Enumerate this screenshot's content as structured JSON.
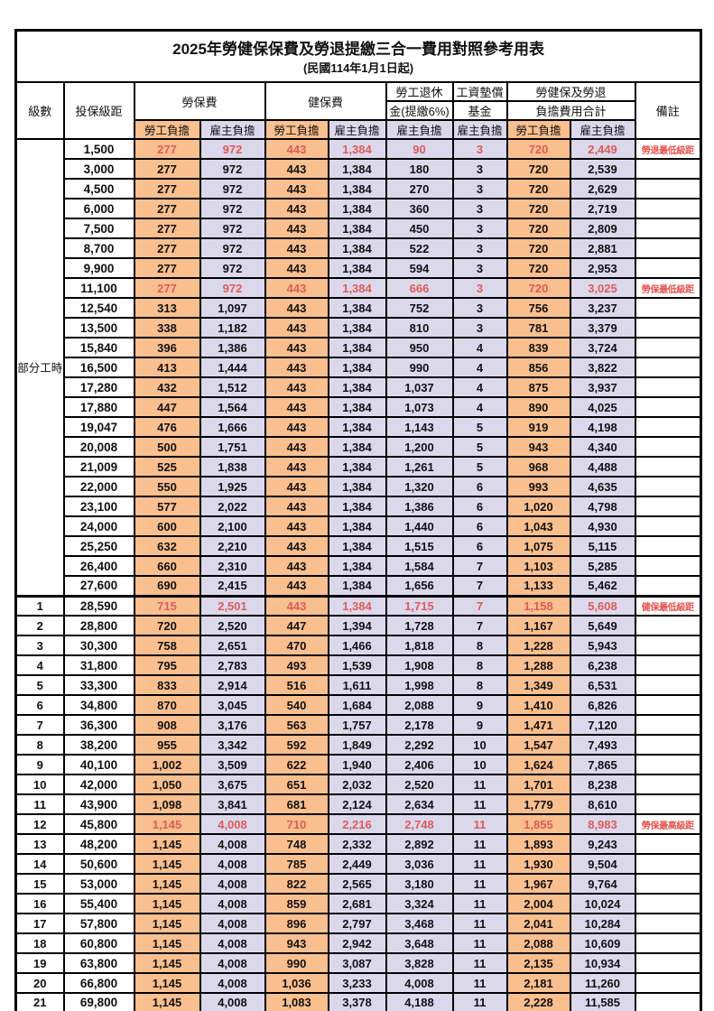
{
  "title": "2025年勞健保保費及勞退提繳三合一費用對照參考用表",
  "subtitle": "(民國114年1月1日起)",
  "colors": {
    "employee_col_bg": "#FABF8F",
    "employer_col_bg": "#DCD8EC",
    "highlight_red": "#DE5B57",
    "border": "#000000"
  },
  "header": {
    "level": "級數",
    "bracket": "投保級距",
    "labor_fee": "勞保費",
    "health_fee": "健保費",
    "pension_line1": "勞工退休",
    "pension_line2": "金(提繳6%)",
    "wage_fund_line1": "工資墊償",
    "wage_fund_line2": "基金",
    "total_line1": "勞健保及勞退",
    "total_line2": "負擔費用合計",
    "note": "備註",
    "employee_burden": "勞工負擔",
    "employer_burden": "雇主負擔"
  },
  "part_time_label": "部分工時",
  "part_time_rowspan": 23,
  "value_col_classes": [
    "emp",
    "er",
    "emp",
    "er",
    "er",
    "er",
    "emp",
    "er"
  ],
  "rows": [
    {
      "level": "",
      "bracket": "1,500",
      "values": [
        "277",
        "972",
        "443",
        "1,384",
        "90",
        "3",
        "720",
        "2,449"
      ],
      "note": "勞退最低級距",
      "highlight": true
    },
    {
      "level": "",
      "bracket": "3,000",
      "values": [
        "277",
        "972",
        "443",
        "1,384",
        "180",
        "3",
        "720",
        "2,539"
      ],
      "note": "",
      "highlight": false
    },
    {
      "level": "",
      "bracket": "4,500",
      "values": [
        "277",
        "972",
        "443",
        "1,384",
        "270",
        "3",
        "720",
        "2,629"
      ],
      "note": "",
      "highlight": false
    },
    {
      "level": "",
      "bracket": "6,000",
      "values": [
        "277",
        "972",
        "443",
        "1,384",
        "360",
        "3",
        "720",
        "2,719"
      ],
      "note": "",
      "highlight": false
    },
    {
      "level": "",
      "bracket": "7,500",
      "values": [
        "277",
        "972",
        "443",
        "1,384",
        "450",
        "3",
        "720",
        "2,809"
      ],
      "note": "",
      "highlight": false
    },
    {
      "level": "",
      "bracket": "8,700",
      "values": [
        "277",
        "972",
        "443",
        "1,384",
        "522",
        "3",
        "720",
        "2,881"
      ],
      "note": "",
      "highlight": false
    },
    {
      "level": "",
      "bracket": "9,900",
      "values": [
        "277",
        "972",
        "443",
        "1,384",
        "594",
        "3",
        "720",
        "2,953"
      ],
      "note": "",
      "highlight": false
    },
    {
      "level": "",
      "bracket": "11,100",
      "values": [
        "277",
        "972",
        "443",
        "1,384",
        "666",
        "3",
        "720",
        "3,025"
      ],
      "note": "勞保最低級距",
      "highlight": true
    },
    {
      "level": "",
      "bracket": "12,540",
      "values": [
        "313",
        "1,097",
        "443",
        "1,384",
        "752",
        "3",
        "756",
        "3,237"
      ],
      "note": "",
      "highlight": false
    },
    {
      "level": "",
      "bracket": "13,500",
      "values": [
        "338",
        "1,182",
        "443",
        "1,384",
        "810",
        "3",
        "781",
        "3,379"
      ],
      "note": "",
      "highlight": false
    },
    {
      "level": "",
      "bracket": "15,840",
      "values": [
        "396",
        "1,386",
        "443",
        "1,384",
        "950",
        "4",
        "839",
        "3,724"
      ],
      "note": "",
      "highlight": false
    },
    {
      "level": "",
      "bracket": "16,500",
      "values": [
        "413",
        "1,444",
        "443",
        "1,384",
        "990",
        "4",
        "856",
        "3,822"
      ],
      "note": "",
      "highlight": false
    },
    {
      "level": "",
      "bracket": "17,280",
      "values": [
        "432",
        "1,512",
        "443",
        "1,384",
        "1,037",
        "4",
        "875",
        "3,937"
      ],
      "note": "",
      "highlight": false
    },
    {
      "level": "",
      "bracket": "17,880",
      "values": [
        "447",
        "1,564",
        "443",
        "1,384",
        "1,073",
        "4",
        "890",
        "4,025"
      ],
      "note": "",
      "highlight": false
    },
    {
      "level": "",
      "bracket": "19,047",
      "values": [
        "476",
        "1,666",
        "443",
        "1,384",
        "1,143",
        "5",
        "919",
        "4,198"
      ],
      "note": "",
      "highlight": false
    },
    {
      "level": "",
      "bracket": "20,008",
      "values": [
        "500",
        "1,751",
        "443",
        "1,384",
        "1,200",
        "5",
        "943",
        "4,340"
      ],
      "note": "",
      "highlight": false
    },
    {
      "level": "",
      "bracket": "21,009",
      "values": [
        "525",
        "1,838",
        "443",
        "1,384",
        "1,261",
        "5",
        "968",
        "4,488"
      ],
      "note": "",
      "highlight": false
    },
    {
      "level": "",
      "bracket": "22,000",
      "values": [
        "550",
        "1,925",
        "443",
        "1,384",
        "1,320",
        "6",
        "993",
        "4,635"
      ],
      "note": "",
      "highlight": false
    },
    {
      "level": "",
      "bracket": "23,100",
      "values": [
        "577",
        "2,022",
        "443",
        "1,384",
        "1,386",
        "6",
        "1,020",
        "4,798"
      ],
      "note": "",
      "highlight": false
    },
    {
      "level": "",
      "bracket": "24,000",
      "values": [
        "600",
        "2,100",
        "443",
        "1,384",
        "1,440",
        "6",
        "1,043",
        "4,930"
      ],
      "note": "",
      "highlight": false
    },
    {
      "level": "",
      "bracket": "25,250",
      "values": [
        "632",
        "2,210",
        "443",
        "1,384",
        "1,515",
        "6",
        "1,075",
        "5,115"
      ],
      "note": "",
      "highlight": false
    },
    {
      "level": "",
      "bracket": "26,400",
      "values": [
        "660",
        "2,310",
        "443",
        "1,384",
        "1,584",
        "7",
        "1,103",
        "5,285"
      ],
      "note": "",
      "highlight": false
    },
    {
      "level": "",
      "bracket": "27,600",
      "values": [
        "690",
        "2,415",
        "443",
        "1,384",
        "1,656",
        "7",
        "1,133",
        "5,462"
      ],
      "note": "",
      "highlight": false
    },
    {
      "level": "1",
      "bracket": "28,590",
      "values": [
        "715",
        "2,501",
        "443",
        "1,384",
        "1,715",
        "7",
        "1,158",
        "5,608"
      ],
      "note": "健保最低級距",
      "highlight": true
    },
    {
      "level": "2",
      "bracket": "28,800",
      "values": [
        "720",
        "2,520",
        "447",
        "1,394",
        "1,728",
        "7",
        "1,167",
        "5,649"
      ],
      "note": "",
      "highlight": false
    },
    {
      "level": "3",
      "bracket": "30,300",
      "values": [
        "758",
        "2,651",
        "470",
        "1,466",
        "1,818",
        "8",
        "1,228",
        "5,943"
      ],
      "note": "",
      "highlight": false
    },
    {
      "level": "4",
      "bracket": "31,800",
      "values": [
        "795",
        "2,783",
        "493",
        "1,539",
        "1,908",
        "8",
        "1,288",
        "6,238"
      ],
      "note": "",
      "highlight": false
    },
    {
      "level": "5",
      "bracket": "33,300",
      "values": [
        "833",
        "2,914",
        "516",
        "1,611",
        "1,998",
        "8",
        "1,349",
        "6,531"
      ],
      "note": "",
      "highlight": false
    },
    {
      "level": "6",
      "bracket": "34,800",
      "values": [
        "870",
        "3,045",
        "540",
        "1,684",
        "2,088",
        "9",
        "1,410",
        "6,826"
      ],
      "note": "",
      "highlight": false
    },
    {
      "level": "7",
      "bracket": "36,300",
      "values": [
        "908",
        "3,176",
        "563",
        "1,757",
        "2,178",
        "9",
        "1,471",
        "7,120"
      ],
      "note": "",
      "highlight": false
    },
    {
      "level": "8",
      "bracket": "38,200",
      "values": [
        "955",
        "3,342",
        "592",
        "1,849",
        "2,292",
        "10",
        "1,547",
        "7,493"
      ],
      "note": "",
      "highlight": false
    },
    {
      "level": "9",
      "bracket": "40,100",
      "values": [
        "1,002",
        "3,509",
        "622",
        "1,940",
        "2,406",
        "10",
        "1,624",
        "7,865"
      ],
      "note": "",
      "highlight": false
    },
    {
      "level": "10",
      "bracket": "42,000",
      "values": [
        "1,050",
        "3,675",
        "651",
        "2,032",
        "2,520",
        "11",
        "1,701",
        "8,238"
      ],
      "note": "",
      "highlight": false
    },
    {
      "level": "11",
      "bracket": "43,900",
      "values": [
        "1,098",
        "3,841",
        "681",
        "2,124",
        "2,634",
        "11",
        "1,779",
        "8,610"
      ],
      "note": "",
      "highlight": false
    },
    {
      "level": "12",
      "bracket": "45,800",
      "values": [
        "1,145",
        "4,008",
        "710",
        "2,216",
        "2,748",
        "11",
        "1,855",
        "8,983"
      ],
      "note": "勞保最高級距",
      "highlight": true
    },
    {
      "level": "13",
      "bracket": "48,200",
      "values": [
        "1,145",
        "4,008",
        "748",
        "2,332",
        "2,892",
        "11",
        "1,893",
        "9,243"
      ],
      "note": "",
      "highlight": false
    },
    {
      "level": "14",
      "bracket": "50,600",
      "values": [
        "1,145",
        "4,008",
        "785",
        "2,449",
        "3,036",
        "11",
        "1,930",
        "9,504"
      ],
      "note": "",
      "highlight": false
    },
    {
      "level": "15",
      "bracket": "53,000",
      "values": [
        "1,145",
        "4,008",
        "822",
        "2,565",
        "3,180",
        "11",
        "1,967",
        "9,764"
      ],
      "note": "",
      "highlight": false
    },
    {
      "level": "16",
      "bracket": "55,400",
      "values": [
        "1,145",
        "4,008",
        "859",
        "2,681",
        "3,324",
        "11",
        "2,004",
        "10,024"
      ],
      "note": "",
      "highlight": false
    },
    {
      "level": "17",
      "bracket": "57,800",
      "values": [
        "1,145",
        "4,008",
        "896",
        "2,797",
        "3,468",
        "11",
        "2,041",
        "10,284"
      ],
      "note": "",
      "highlight": false
    },
    {
      "level": "18",
      "bracket": "60,800",
      "values": [
        "1,145",
        "4,008",
        "943",
        "2,942",
        "3,648",
        "11",
        "2,088",
        "10,609"
      ],
      "note": "",
      "highlight": false
    },
    {
      "level": "19",
      "bracket": "63,800",
      "values": [
        "1,145",
        "4,008",
        "990",
        "3,087",
        "3,828",
        "11",
        "2,135",
        "10,934"
      ],
      "note": "",
      "highlight": false
    },
    {
      "level": "20",
      "bracket": "66,800",
      "values": [
        "1,145",
        "4,008",
        "1,036",
        "3,233",
        "4,008",
        "11",
        "2,181",
        "11,260"
      ],
      "note": "",
      "highlight": false
    },
    {
      "level": "21",
      "bracket": "69,800",
      "values": [
        "1,145",
        "4,008",
        "1,083",
        "3,378",
        "4,188",
        "11",
        "2,228",
        "11,585"
      ],
      "note": "",
      "highlight": false
    }
  ]
}
